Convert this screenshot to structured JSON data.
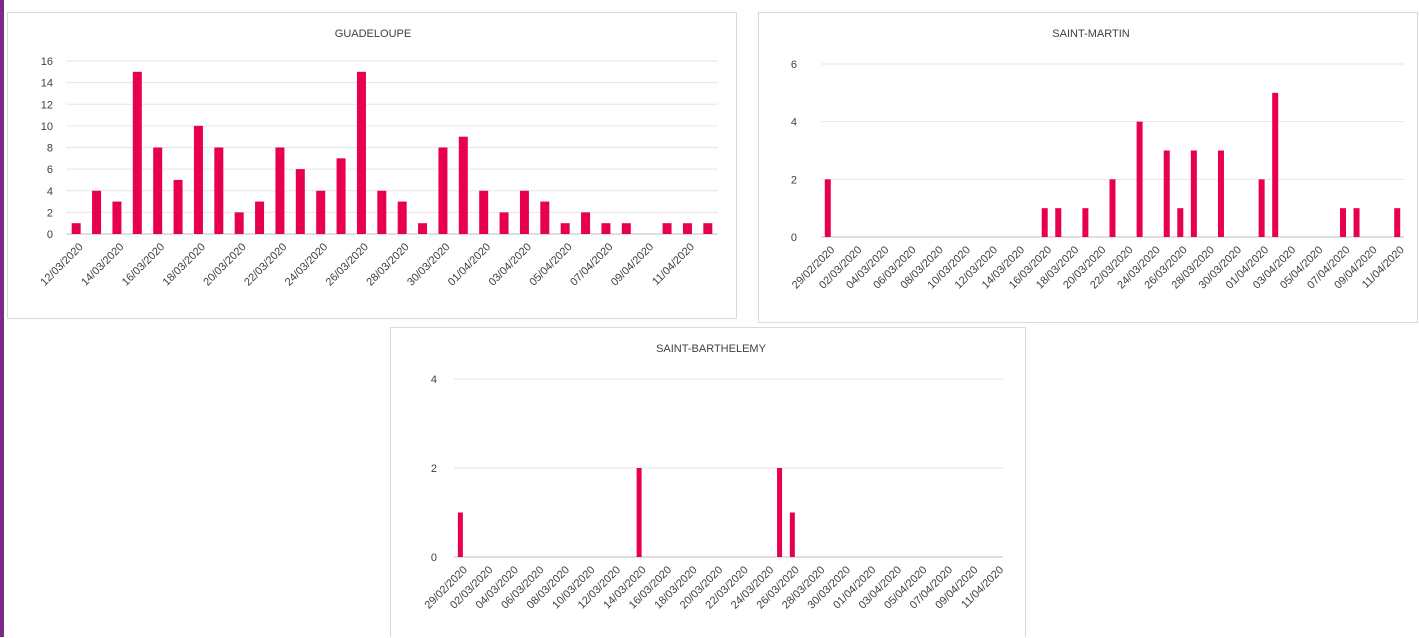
{
  "colors": {
    "bar": "#e8004f",
    "grid": "#e6e6e6",
    "text": "#404040",
    "left_rule": "#7b2b86"
  },
  "chart_data": [
    {
      "type": "bar",
      "title": "GUADELOUPE",
      "xlabel": "",
      "ylabel": "",
      "ylim": [
        0,
        16
      ],
      "yticks": [
        "0",
        "2",
        "4",
        "6",
        "8",
        "10",
        "12",
        "14",
        "16"
      ],
      "grid": true,
      "categories": [
        "12/03/2020",
        "13/03/2020",
        "14/03/2020",
        "15/03/2020",
        "16/03/2020",
        "17/03/2020",
        "18/03/2020",
        "19/03/2020",
        "20/03/2020",
        "21/03/2020",
        "22/03/2020",
        "23/03/2020",
        "24/03/2020",
        "25/03/2020",
        "26/03/2020",
        "27/03/2020",
        "28/03/2020",
        "29/03/2020",
        "30/03/2020",
        "31/03/2020",
        "01/04/2020",
        "02/04/2020",
        "03/04/2020",
        "04/04/2020",
        "05/04/2020",
        "06/04/2020",
        "07/04/2020",
        "08/04/2020",
        "09/04/2020",
        "10/04/2020",
        "11/04/2020",
        "12/04/2020"
      ],
      "tick_labels": [
        "12/03/2020",
        "14/03/2020",
        "16/03/2020",
        "18/03/2020",
        "20/03/2020",
        "22/03/2020",
        "24/03/2020",
        "26/03/2020",
        "28/03/2020",
        "30/03/2020",
        "01/04/2020",
        "03/04/2020",
        "05/04/2020",
        "07/04/2020",
        "09/04/2020",
        "11/04/2020"
      ],
      "values": [
        1,
        4,
        3,
        15,
        8,
        5,
        10,
        8,
        2,
        3,
        8,
        6,
        4,
        7,
        15,
        4,
        3,
        1,
        8,
        9,
        4,
        2,
        4,
        3,
        1,
        2,
        1,
        1,
        0,
        1,
        1,
        1
      ]
    },
    {
      "type": "bar",
      "title": "SAINT-MARTIN",
      "xlabel": "",
      "ylabel": "",
      "ylim": [
        0,
        6
      ],
      "yticks": [
        "0",
        "2",
        "4",
        "6"
      ],
      "grid": true,
      "categories": [
        "29/02/2020",
        "01/03/2020",
        "02/03/2020",
        "03/03/2020",
        "04/03/2020",
        "05/03/2020",
        "06/03/2020",
        "07/03/2020",
        "08/03/2020",
        "09/03/2020",
        "10/03/2020",
        "11/03/2020",
        "12/03/2020",
        "13/03/2020",
        "14/03/2020",
        "15/03/2020",
        "16/03/2020",
        "17/03/2020",
        "18/03/2020",
        "19/03/2020",
        "20/03/2020",
        "21/03/2020",
        "22/03/2020",
        "23/03/2020",
        "24/03/2020",
        "25/03/2020",
        "26/03/2020",
        "27/03/2020",
        "28/03/2020",
        "29/03/2020",
        "30/03/2020",
        "31/03/2020",
        "01/04/2020",
        "02/04/2020",
        "03/04/2020",
        "04/04/2020",
        "05/04/2020",
        "06/04/2020",
        "07/04/2020",
        "08/04/2020",
        "09/04/2020",
        "10/04/2020",
        "11/04/2020"
      ],
      "tick_labels": [
        "29/02/2020",
        "02/03/2020",
        "04/03/2020",
        "06/03/2020",
        "08/03/2020",
        "10/03/2020",
        "12/03/2020",
        "14/03/2020",
        "16/03/2020",
        "18/03/2020",
        "20/03/2020",
        "22/03/2020",
        "24/03/2020",
        "26/03/2020",
        "28/03/2020",
        "30/03/2020",
        "01/04/2020",
        "03/04/2020",
        "05/04/2020",
        "07/04/2020",
        "09/04/2020",
        "11/04/2020"
      ],
      "values": [
        2,
        0,
        0,
        0,
        0,
        0,
        0,
        0,
        0,
        0,
        0,
        0,
        0,
        0,
        0,
        0,
        1,
        1,
        0,
        1,
        0,
        2,
        0,
        4,
        0,
        3,
        1,
        3,
        0,
        3,
        0,
        0,
        2,
        5,
        0,
        0,
        0,
        0,
        1,
        1,
        0,
        0,
        1
      ]
    },
    {
      "type": "bar",
      "title": "SAINT-BARTHELEMY",
      "xlabel": "",
      "ylabel": "",
      "ylim": [
        0,
        4
      ],
      "yticks": [
        "0",
        "2",
        "4"
      ],
      "grid": true,
      "categories": [
        "29/02/2020",
        "01/03/2020",
        "02/03/2020",
        "03/03/2020",
        "04/03/2020",
        "05/03/2020",
        "06/03/2020",
        "07/03/2020",
        "08/03/2020",
        "09/03/2020",
        "10/03/2020",
        "11/03/2020",
        "12/03/2020",
        "13/03/2020",
        "14/03/2020",
        "15/03/2020",
        "16/03/2020",
        "17/03/2020",
        "18/03/2020",
        "19/03/2020",
        "20/03/2020",
        "21/03/2020",
        "22/03/2020",
        "23/03/2020",
        "24/03/2020",
        "25/03/2020",
        "26/03/2020",
        "27/03/2020",
        "28/03/2020",
        "29/03/2020",
        "30/03/2020",
        "31/03/2020",
        "01/04/2020",
        "02/04/2020",
        "03/04/2020",
        "04/04/2020",
        "05/04/2020",
        "06/04/2020",
        "07/04/2020",
        "08/04/2020",
        "09/04/2020",
        "10/04/2020",
        "11/04/2020"
      ],
      "tick_labels": [
        "29/02/2020",
        "02/03/2020",
        "04/03/2020",
        "06/03/2020",
        "08/03/2020",
        "10/03/2020",
        "12/03/2020",
        "14/03/2020",
        "16/03/2020",
        "18/03/2020",
        "20/03/2020",
        "22/03/2020",
        "24/03/2020",
        "26/03/2020",
        "28/03/2020",
        "30/03/2020",
        "01/04/2020",
        "03/04/2020",
        "05/04/2020",
        "07/04/2020",
        "09/04/2020",
        "11/04/2020"
      ],
      "values": [
        1,
        0,
        0,
        0,
        0,
        0,
        0,
        0,
        0,
        0,
        0,
        0,
        0,
        0,
        2,
        0,
        0,
        0,
        0,
        0,
        0,
        0,
        0,
        0,
        0,
        2,
        1,
        0,
        0,
        0,
        0,
        0,
        0,
        0,
        0,
        0,
        0,
        0,
        0,
        0,
        0,
        0,
        0
      ]
    }
  ]
}
